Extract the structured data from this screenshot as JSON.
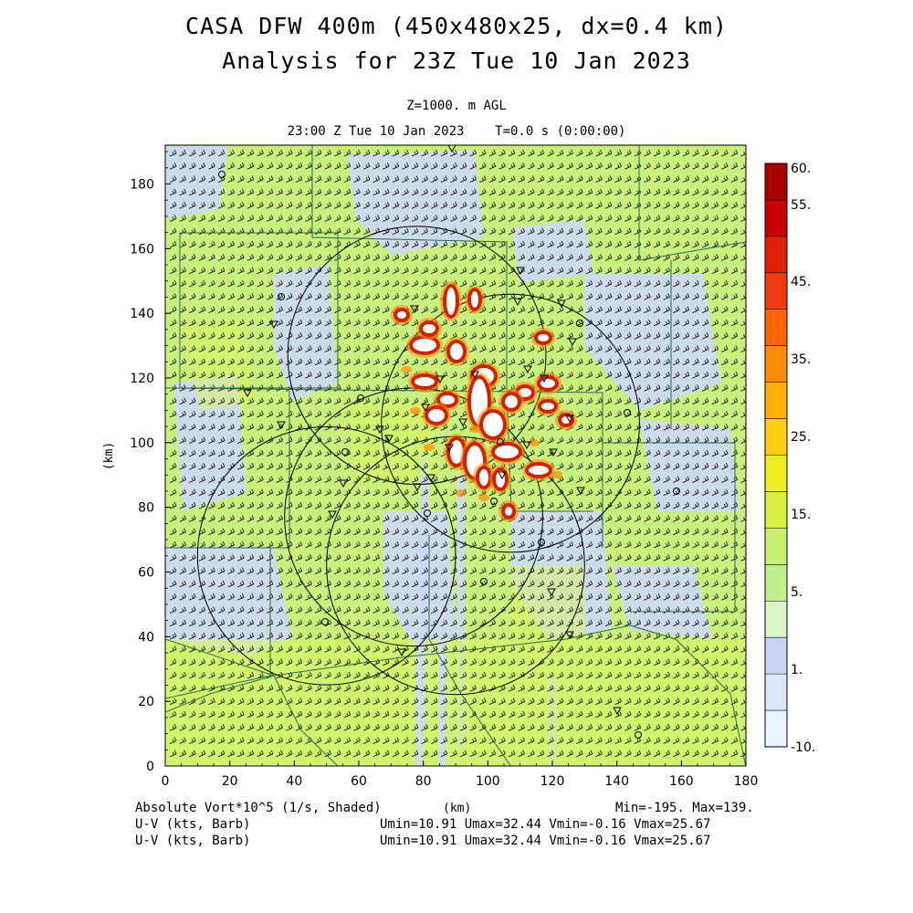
{
  "header": {
    "title_line1": "CASA DFW 400m (450x480x25, dx=0.4 km)",
    "title_line2": "Analysis for 23Z Tue 10 Jan 2023",
    "level": "Z=1000. m AGL",
    "valid_time": "23:00 Z Tue 10 Jan 2023    T=0.0 s (0:00:00)"
  },
  "axes": {
    "x_label": "(km)",
    "y_label": "(km)",
    "x_ticks": [
      "0",
      "20",
      "40",
      "60",
      "80",
      "100",
      "120",
      "140",
      "160",
      "180"
    ],
    "y_ticks": [
      "0",
      "20",
      "40",
      "60",
      "80",
      "100",
      "120",
      "140",
      "160",
      "180"
    ],
    "x_range": [
      0,
      180
    ],
    "y_range": [
      0,
      192
    ]
  },
  "colorbar": {
    "labels": [
      "60.",
      "55.",
      "45.",
      "35.",
      "25.",
      "15.",
      "5.",
      "1.",
      "-10."
    ],
    "colors": [
      "#aa0000",
      "#c80000",
      "#e02000",
      "#f03a10",
      "#ff6400",
      "#ff8c00",
      "#ffb000",
      "#ffd010",
      "#eeee20",
      "#d8f040",
      "#c8f070",
      "#bff08c",
      "#d8f6c8",
      "#c8d4f4",
      "#dce6f8",
      "#e8f4fc"
    ]
  },
  "footer": {
    "field_name": "Absolute Vort*10^5 (1/s, Shaded)",
    "x_unit": "(km)",
    "field_range": "Min=-195. Max=139.",
    "vector1_name": "U-V (kts, Barb)",
    "vector1_range": "Umin=10.91 Umax=32.44 Vmin=-0.16 Vmax=25.67",
    "vector2_name": "U-V (kts, Barb)",
    "vector2_range": "Umin=10.91 Umax=32.44 Vmin=-0.16 Vmax=25.67"
  },
  "map": {
    "field_colors": {
      "background": "#c8f07c",
      "low": "#ccd8f4",
      "high": "#daf660",
      "core_red": "#d22000",
      "core_orange": "#ff8c00",
      "core_white": "#ffffff"
    },
    "radar_rings_km": [
      {
        "x": 78,
        "y": 127,
        "r": 40
      },
      {
        "x": 107,
        "y": 106,
        "r": 40
      },
      {
        "x": 77,
        "y": 77,
        "r": 40
      },
      {
        "x": 50,
        "y": 65,
        "r": 40
      },
      {
        "x": 90,
        "y": 62,
        "r": 40
      }
    ]
  }
}
